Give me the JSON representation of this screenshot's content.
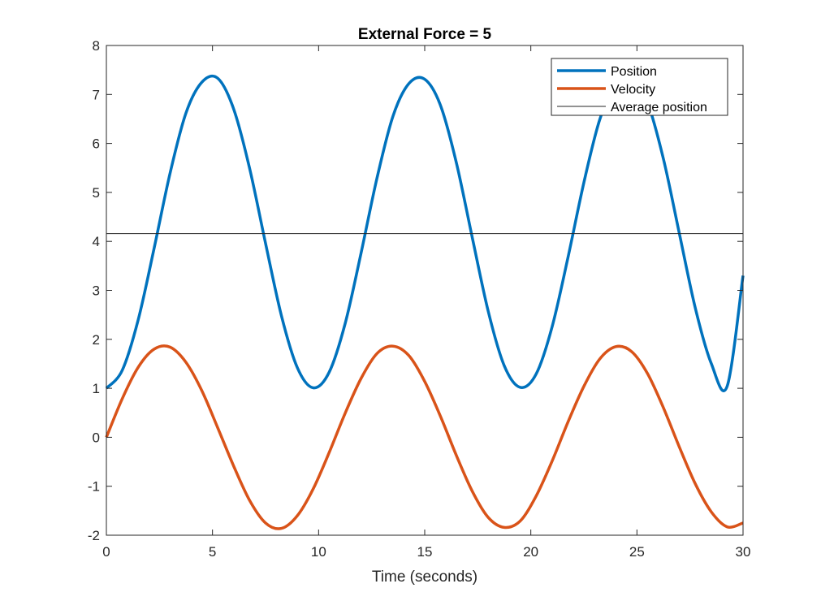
{
  "chart_data": {
    "type": "line",
    "title": "External Force = 5",
    "xlabel": "Time (seconds)",
    "ylabel": "",
    "xlim": [
      0,
      30
    ],
    "ylim": [
      -2,
      8
    ],
    "xticks": [
      0,
      5,
      10,
      15,
      20,
      25,
      30
    ],
    "yticks": [
      -2,
      -1,
      0,
      1,
      2,
      3,
      4,
      5,
      6,
      7,
      8
    ],
    "grid": false,
    "legend_position": "top-right",
    "series": [
      {
        "name": "Position",
        "color": "#0072BD",
        "style": "thick",
        "x": [
          0,
          0.75,
          1.5,
          2.25,
          3.0,
          3.75,
          4.5,
          5.25,
          6.0,
          6.75,
          7.5,
          8.25,
          9.0,
          9.75,
          10.5,
          11.25,
          12.0,
          12.75,
          13.5,
          14.25,
          15.0,
          15.75,
          16.5,
          17.25,
          18.0,
          18.75,
          19.5,
          20.25,
          21.0,
          21.75,
          22.5,
          23.25,
          24.0,
          24.75,
          25.5,
          26.25,
          27.0,
          27.75,
          28.5,
          29.25,
          30.0
        ],
        "y": [
          1.0,
          1.37,
          2.4,
          3.86,
          5.39,
          6.62,
          7.25,
          7.33,
          6.7,
          5.49,
          3.96,
          2.48,
          1.42,
          1.01,
          1.33,
          2.32,
          3.76,
          5.29,
          6.55,
          7.22,
          7.31,
          6.77,
          5.59,
          4.06,
          2.56,
          1.46,
          1.02,
          1.29,
          2.25,
          3.67,
          5.2,
          6.49,
          7.19,
          7.32,
          6.83,
          5.68,
          4.16,
          2.64,
          1.51,
          1.04,
          3.3
        ]
      },
      {
        "name": "Velocity",
        "color": "#D95319",
        "style": "thick",
        "x": [
          0,
          0.75,
          1.5,
          2.25,
          3.0,
          3.75,
          4.5,
          5.25,
          6.0,
          6.75,
          7.5,
          8.25,
          9.0,
          9.75,
          10.5,
          11.25,
          12.0,
          12.75,
          13.5,
          14.25,
          15.0,
          15.75,
          16.5,
          17.25,
          18.0,
          18.75,
          19.5,
          20.25,
          21.0,
          21.75,
          22.5,
          23.25,
          24.0,
          24.75,
          25.5,
          26.25,
          27.0,
          27.75,
          28.5,
          29.25,
          30.0
        ],
        "y": [
          0.0,
          0.79,
          1.43,
          1.8,
          1.84,
          1.53,
          0.95,
          0.19,
          -0.59,
          -1.29,
          -1.75,
          -1.86,
          -1.6,
          -1.05,
          -0.31,
          0.49,
          1.2,
          1.71,
          1.86,
          1.67,
          1.14,
          0.42,
          -0.38,
          -1.11,
          -1.64,
          -1.84,
          -1.71,
          -1.2,
          -0.49,
          0.31,
          1.04,
          1.6,
          1.85,
          1.75,
          1.3,
          0.6,
          -0.2,
          -0.95,
          -1.52,
          -1.83,
          -1.75
        ]
      },
      {
        "name": "Average position",
        "color": "#262626",
        "style": "thin",
        "x": [
          0,
          30
        ],
        "y": [
          4.16,
          4.16
        ]
      }
    ]
  }
}
